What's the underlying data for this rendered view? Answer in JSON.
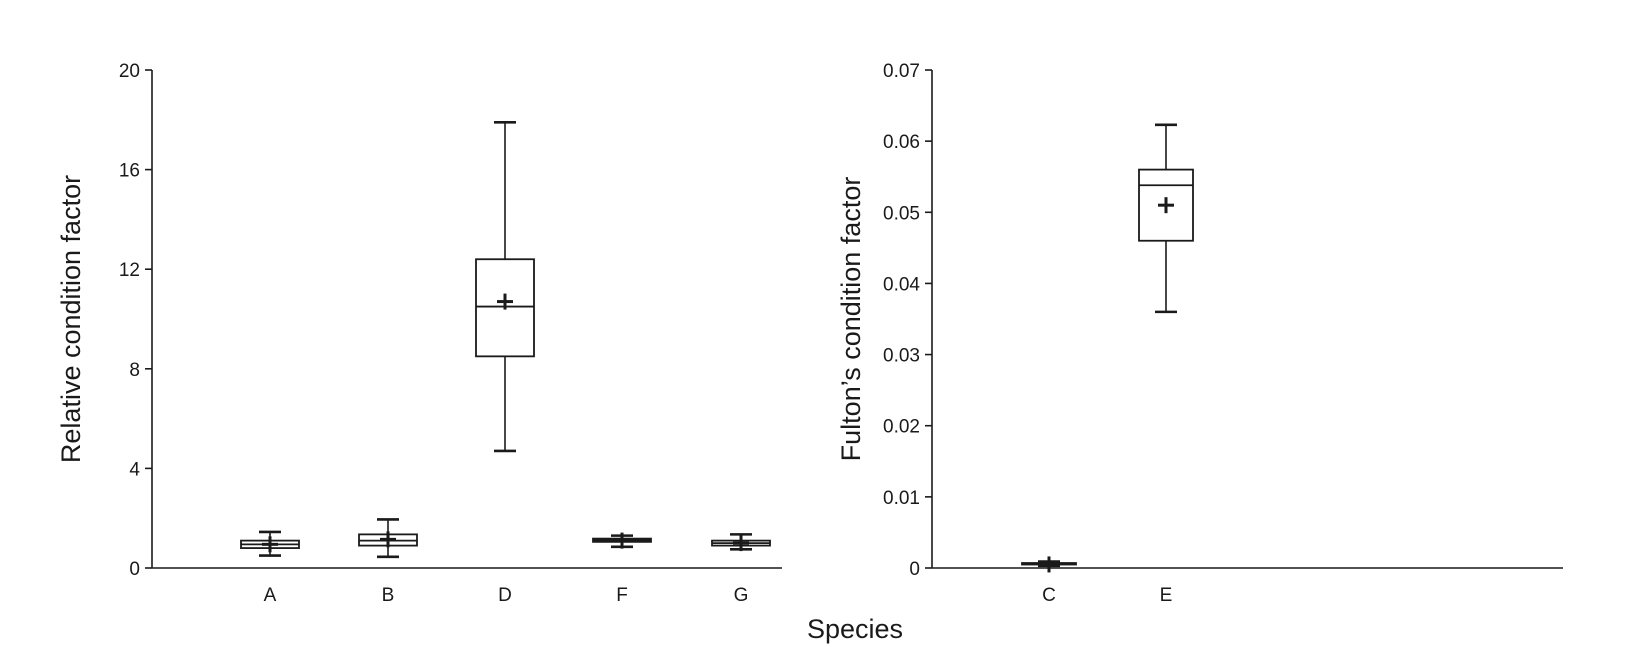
{
  "xlabel_shared": "Species",
  "chart_data": [
    {
      "type": "boxplot",
      "title": "",
      "ylabel": "Relative condition factor",
      "xlabel": "",
      "ylim": [
        0,
        20
      ],
      "yticks": [
        0,
        4,
        8,
        12,
        16,
        20
      ],
      "categories": [
        "A",
        "B",
        "D",
        "F",
        "G"
      ],
      "boxes": [
        {
          "category": "A",
          "min": 0.5,
          "q1": 0.8,
          "median": 0.95,
          "q3": 1.1,
          "max": 1.45,
          "mean": 0.95
        },
        {
          "category": "B",
          "min": 0.45,
          "q1": 0.9,
          "median": 1.1,
          "q3": 1.35,
          "max": 1.95,
          "mean": 1.15
        },
        {
          "category": "D",
          "min": 4.7,
          "q1": 8.5,
          "median": 10.5,
          "q3": 12.4,
          "max": 17.9,
          "mean": 10.7
        },
        {
          "category": "F",
          "min": 0.85,
          "q1": 1.05,
          "median": 1.12,
          "q3": 1.18,
          "max": 1.3,
          "mean": 1.1
        },
        {
          "category": "G",
          "min": 0.75,
          "q1": 0.9,
          "median": 1.0,
          "q3": 1.1,
          "max": 1.35,
          "mean": 1.0
        }
      ]
    },
    {
      "type": "boxplot",
      "title": "",
      "ylabel": "Fulton’s condition factor",
      "xlabel": "",
      "ylim": [
        0,
        0.07
      ],
      "yticks": [
        "0",
        "0.01",
        "0.02",
        "0.03",
        "0.04",
        "0.05",
        "0.06",
        "0.07"
      ],
      "categories": [
        "C",
        "E"
      ],
      "boxes": [
        {
          "category": "C",
          "min": 0.0003,
          "q1": 0.0005,
          "median": 0.0006,
          "q3": 0.0007,
          "max": 0.0009,
          "mean": 0.0005
        },
        {
          "category": "E",
          "min": 0.036,
          "q1": 0.046,
          "median": 0.0538,
          "q3": 0.056,
          "max": 0.0623,
          "mean": 0.051
        }
      ]
    }
  ]
}
